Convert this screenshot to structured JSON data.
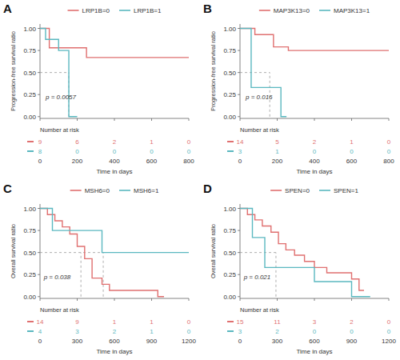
{
  "chart_data": [
    {
      "type": "line",
      "title": "A",
      "ylabel": "Progression-free survival ratio",
      "xlabel": "Time in days",
      "xlim": [
        0,
        800
      ],
      "ylim": [
        -0.02,
        1.05
      ],
      "xticks": [
        0,
        200,
        400,
        600,
        800
      ],
      "yticks": [
        0.0,
        0.25,
        0.5,
        0.75,
        1.0
      ],
      "legend": "top",
      "grid": false,
      "annotations": [
        {
          "text": "p = 0.0057",
          "x": 30,
          "y": 0.2
        }
      ],
      "median_x": [
        155
      ],
      "median_y": 0.5,
      "at_risk_title": "Number at risk",
      "at_risk_times": [
        0,
        200,
        400,
        600,
        800
      ],
      "series": [
        {
          "name": "LRP1B=0",
          "color": "#E07070",
          "x": [
            0,
            50,
            50,
            250,
            250,
            800
          ],
          "values": [
            1.0,
            1.0,
            0.78,
            0.78,
            0.67,
            0.67
          ],
          "at_risk": [
            9,
            6,
            2,
            1,
            0
          ]
        },
        {
          "name": "LRP1B=1",
          "color": "#5BB8C0",
          "x": [
            0,
            30,
            30,
            100,
            100,
            155,
            155,
            200
          ],
          "values": [
            1.0,
            1.0,
            0.875,
            0.875,
            0.75,
            0.75,
            0.0,
            0.0
          ],
          "at_risk": [
            8,
            0,
            0,
            0,
            0
          ]
        }
      ]
    },
    {
      "type": "line",
      "title": "B",
      "ylabel": "Progression-free survival ratio",
      "xlabel": "Time in days",
      "xlim": [
        0,
        800
      ],
      "ylim": [
        -0.02,
        1.05
      ],
      "xticks": [
        0,
        200,
        400,
        600,
        800
      ],
      "yticks": [
        0.0,
        0.25,
        0.5,
        0.75,
        1.0
      ],
      "legend": "top",
      "grid": false,
      "annotations": [
        {
          "text": "p = 0.016",
          "x": 30,
          "y": 0.2
        }
      ],
      "median_x": [
        160
      ],
      "median_y": 0.5,
      "at_risk_title": "Number at risk",
      "at_risk_times": [
        0,
        200,
        400,
        600,
        800
      ],
      "series": [
        {
          "name": "MAP3K13=0",
          "color": "#E07070",
          "x": [
            0,
            80,
            80,
            180,
            180,
            260,
            260,
            800
          ],
          "values": [
            1.0,
            1.0,
            0.93,
            0.93,
            0.79,
            0.79,
            0.75,
            0.75
          ],
          "at_risk": [
            14,
            5,
            2,
            1,
            0
          ]
        },
        {
          "name": "MAP3K13=1",
          "color": "#5BB8C0",
          "x": [
            0,
            60,
            60,
            160,
            160,
            220,
            220,
            250
          ],
          "values": [
            1.0,
            1.0,
            0.33,
            0.33,
            0.33,
            0.33,
            0.0,
            0.0
          ],
          "at_risk": [
            3,
            1,
            0,
            0,
            0
          ]
        }
      ]
    },
    {
      "type": "line",
      "title": "C",
      "ylabel": "Overall survival ratio",
      "xlabel": "Time in days",
      "xlim": [
        0,
        1200
      ],
      "ylim": [
        -0.02,
        1.05
      ],
      "xticks": [
        0,
        300,
        600,
        900,
        1200
      ],
      "yticks": [
        0.0,
        0.25,
        0.5,
        0.75,
        1.0
      ],
      "legend": "top",
      "grid": false,
      "annotations": [
        {
          "text": "p = 0.038",
          "x": 30,
          "y": 0.2
        }
      ],
      "median_x": [
        330,
        510
      ],
      "median_y": 0.5,
      "at_risk_title": "Number at risk",
      "at_risk_times": [
        0,
        300,
        600,
        900,
        1200
      ],
      "series": [
        {
          "name": "MSH6=0",
          "color": "#E07070",
          "x": [
            0,
            60,
            60,
            120,
            120,
            180,
            180,
            240,
            240,
            300,
            300,
            360,
            360,
            420,
            420,
            500,
            500,
            560,
            560,
            700,
            700,
            950,
            950,
            1000
          ],
          "values": [
            1.0,
            1.0,
            0.93,
            0.93,
            0.86,
            0.86,
            0.79,
            0.79,
            0.71,
            0.71,
            0.57,
            0.57,
            0.43,
            0.43,
            0.21,
            0.21,
            0.14,
            0.14,
            0.07,
            0.07,
            0.07,
            0.07,
            0.0,
            0.0
          ],
          "at_risk": [
            14,
            9,
            1,
            1,
            0
          ]
        },
        {
          "name": "MSH6=1",
          "color": "#5BB8C0",
          "x": [
            0,
            100,
            100,
            500,
            500,
            1200
          ],
          "values": [
            1.0,
            1.0,
            0.75,
            0.75,
            0.5,
            0.5
          ],
          "at_risk": [
            4,
            3,
            2,
            1,
            0
          ]
        }
      ]
    },
    {
      "type": "line",
      "title": "D",
      "ylabel": "Overall survival ratio",
      "xlabel": "Time in days",
      "xlim": [
        0,
        1200
      ],
      "ylim": [
        -0.02,
        1.05
      ],
      "xticks": [
        0,
        300,
        600,
        900,
        1200
      ],
      "yticks": [
        0.0,
        0.25,
        0.5,
        0.75,
        1.0
      ],
      "legend": "top",
      "grid": false,
      "annotations": [
        {
          "text": "p = 0.021",
          "x": 30,
          "y": 0.2
        }
      ],
      "median_x": [
        290
      ],
      "median_y": 0.5,
      "at_risk_title": "Number at risk",
      "at_risk_times": [
        0,
        300,
        600,
        900,
        1200
      ],
      "series": [
        {
          "name": "SPEN=0",
          "color": "#E07070",
          "x": [
            0,
            60,
            60,
            120,
            120,
            180,
            180,
            250,
            250,
            310,
            310,
            370,
            370,
            440,
            440,
            520,
            520,
            600,
            600,
            700,
            700,
            900,
            900,
            960,
            960,
            1000
          ],
          "values": [
            1.0,
            1.0,
            0.93,
            0.93,
            0.87,
            0.87,
            0.8,
            0.8,
            0.73,
            0.73,
            0.6,
            0.6,
            0.53,
            0.53,
            0.47,
            0.47,
            0.4,
            0.4,
            0.33,
            0.33,
            0.27,
            0.27,
            0.2,
            0.2,
            0.07,
            0.07
          ],
          "at_risk": [
            15,
            11,
            3,
            2,
            0
          ]
        },
        {
          "name": "SPEN=1",
          "color": "#5BB8C0",
          "x": [
            0,
            100,
            100,
            200,
            200,
            400,
            400,
            600,
            600,
            900,
            900,
            1050
          ],
          "values": [
            1.0,
            1.0,
            0.67,
            0.67,
            0.33,
            0.33,
            0.33,
            0.33,
            0.17,
            0.17,
            0.0,
            0.0
          ],
          "at_risk": [
            3,
            2,
            0,
            0,
            0
          ]
        }
      ]
    }
  ]
}
